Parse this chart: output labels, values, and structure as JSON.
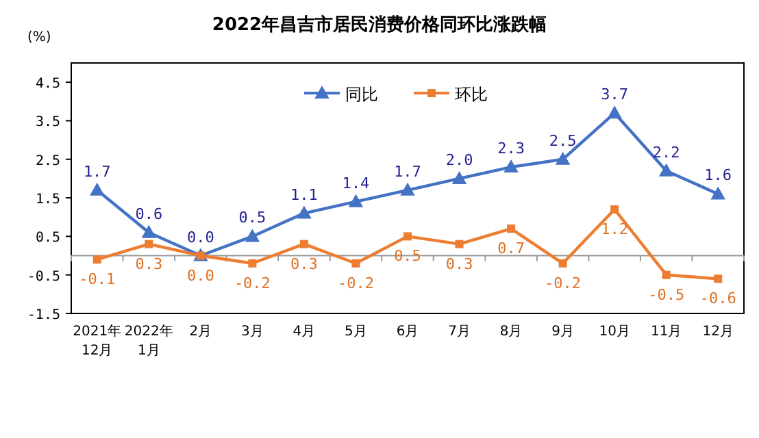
{
  "chart_data": {
    "type": "line",
    "title": "2022年昌吉市居民消费价格同环比涨跌幅",
    "ylabel": "(%)",
    "categories": [
      "2021年\n12月",
      "2022年\n1月",
      "2月",
      "3月",
      "4月",
      "5月",
      "6月",
      "7月",
      "8月",
      "9月",
      "10月",
      "11月",
      "12月"
    ],
    "series": [
      {
        "name": "同比",
        "color": "#4472c4",
        "marker": "triangle",
        "values": [
          1.7,
          0.6,
          0.0,
          0.5,
          1.1,
          1.4,
          1.7,
          2.0,
          2.3,
          2.5,
          3.7,
          2.2,
          1.6
        ],
        "value_labels": [
          "1.7",
          "0.6",
          "0.0",
          "0.5",
          "1.1",
          "1.4",
          "1.7",
          "2.0",
          "2.3",
          "2.5",
          "3.7",
          "2.2",
          "1.6"
        ]
      },
      {
        "name": "环比",
        "color": "#ed7d31",
        "marker": "square",
        "values": [
          -0.1,
          0.3,
          0.0,
          -0.2,
          0.3,
          -0.2,
          0.5,
          0.3,
          0.7,
          -0.2,
          1.2,
          -0.5,
          -0.6
        ],
        "value_labels": [
          "-0.1",
          "0.3",
          "0.0",
          "-0.2",
          "0.3",
          "-0.2",
          "0.5",
          "0.3",
          "0.7",
          "-0.2",
          "1.2",
          "-0.5",
          "-0.6"
        ]
      }
    ],
    "ylim": [
      -1.5,
      5
    ],
    "yticks": [
      4.5,
      3.5,
      2.5,
      1.5,
      0.5,
      -0.5,
      -1.5
    ],
    "legend": "top"
  }
}
